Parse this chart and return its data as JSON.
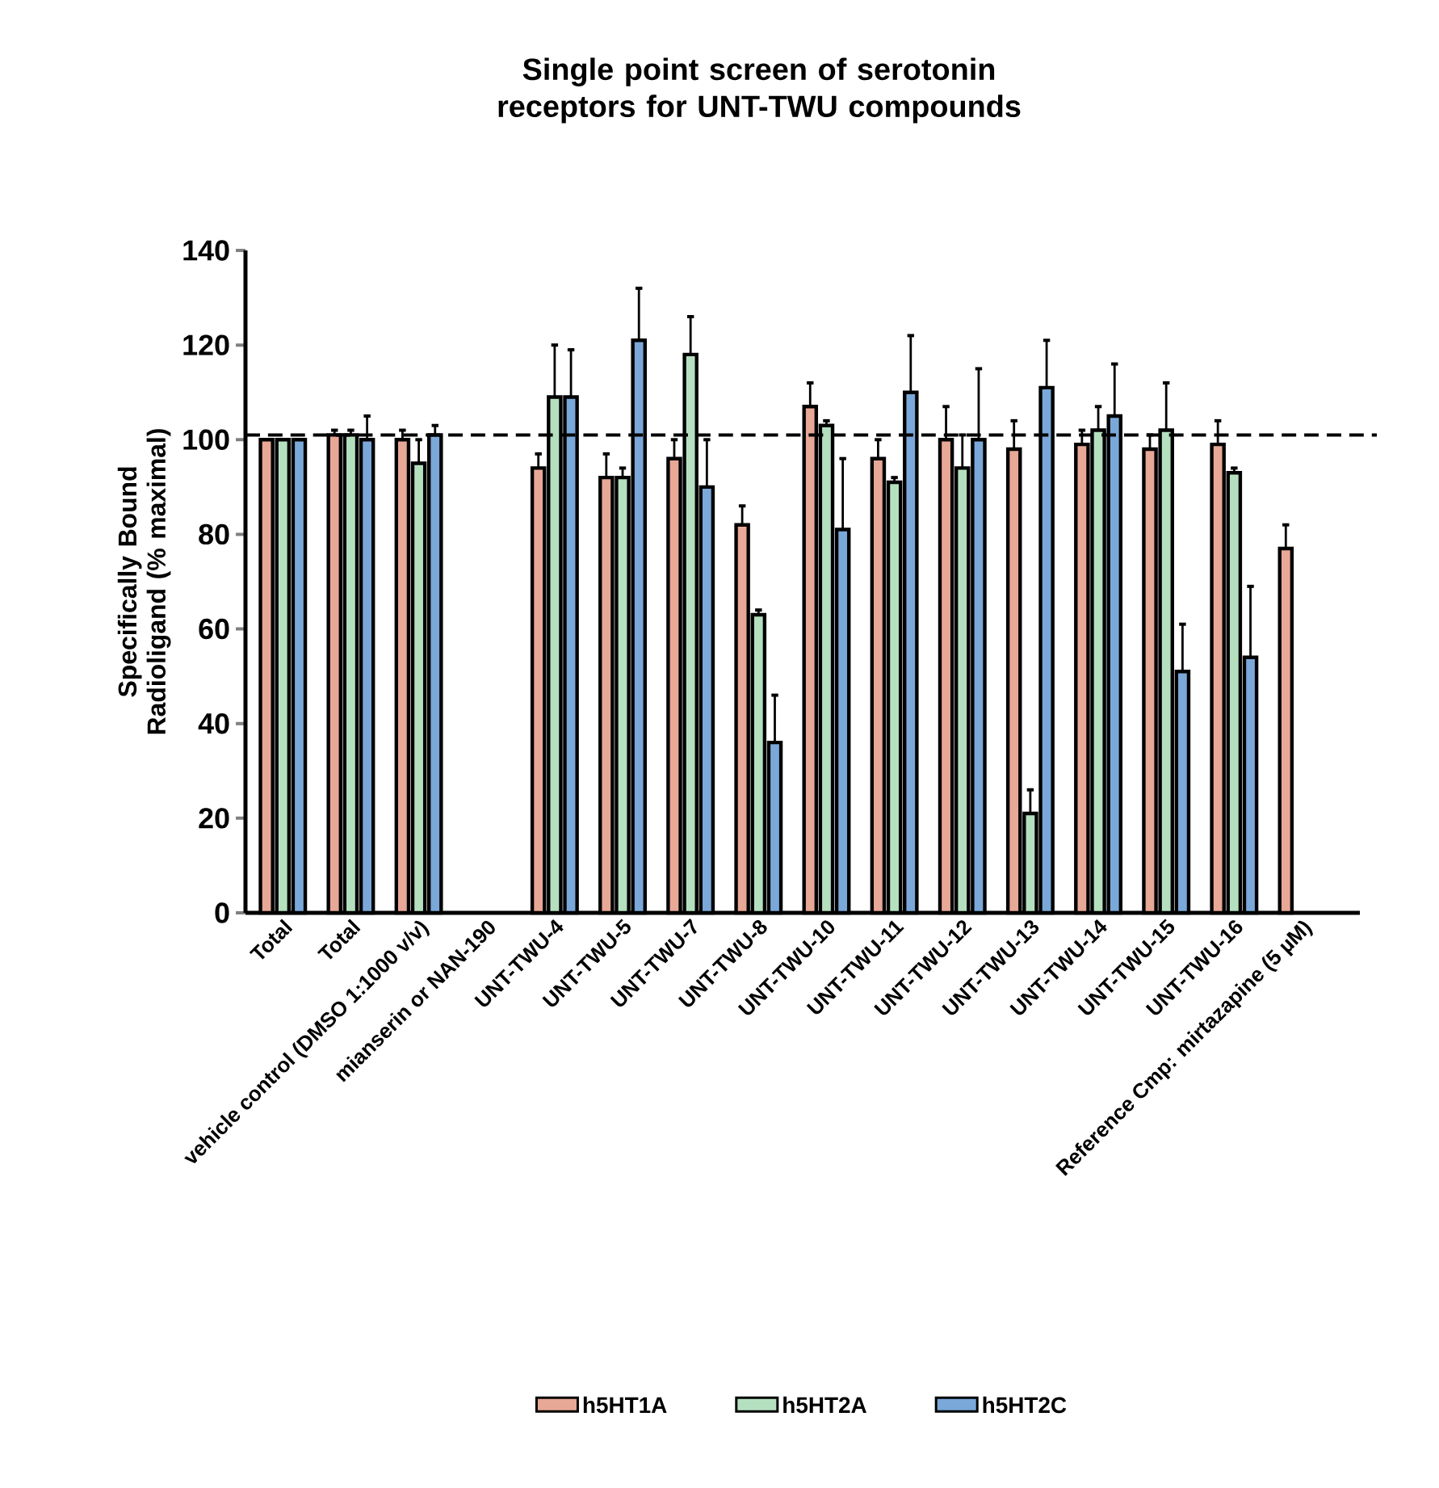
{
  "chart_data": {
    "type": "bar",
    "title": "Single point screen of serotonin receptors for UNT-TWU compounds",
    "ylabel": "Specifically Bound Radioligand (% maximal)",
    "categories": [
      "Total",
      "Total",
      "vehicle control (DMSO 1:1000 v/v)",
      "mianserin or NAN-190",
      "UNT-TWU-4",
      "UNT-TWU-5",
      "UNT-TWU-7",
      "UNT-TWU-8",
      "UNT-TWU-10",
      "UNT-TWU-11",
      "UNT-TWU-12",
      "UNT-TWU-13",
      "UNT-TWU-14",
      "UNT-TWU-15",
      "UNT-TWU-16",
      "Reference Cmp: mirtazapine (5 µM)"
    ],
    "series": [
      {
        "name": "h5HT1A",
        "color": "#e8a896",
        "values": [
          100,
          101,
          100,
          null,
          94,
          92,
          96,
          82,
          107,
          96,
          100,
          98,
          99,
          98,
          99,
          77
        ],
        "errors": [
          null,
          1,
          2,
          null,
          3,
          5,
          4,
          4,
          5,
          4,
          7,
          6,
          3,
          3,
          5,
          5
        ]
      },
      {
        "name": "h5HT2A",
        "color": "#b5e0c0",
        "values": [
          100,
          101,
          95,
          null,
          109,
          92,
          118,
          63,
          103,
          91,
          94,
          21,
          102,
          102,
          93,
          null
        ],
        "errors": [
          null,
          1,
          5,
          null,
          11,
          2,
          8,
          1,
          1,
          1,
          7,
          5,
          5,
          10,
          1,
          null
        ]
      },
      {
        "name": "h5HT2C",
        "color": "#7aa8d8",
        "values": [
          100,
          100,
          101,
          null,
          109,
          121,
          90,
          36,
          81,
          110,
          100,
          111,
          105,
          51,
          54,
          null
        ],
        "errors": [
          null,
          5,
          2,
          null,
          10,
          11,
          10,
          10,
          15,
          12,
          15,
          10,
          11,
          10,
          15,
          null
        ]
      }
    ],
    "ylim": [
      0,
      140
    ],
    "yticks": [
      0,
      20,
      40,
      60,
      80,
      100,
      120,
      140
    ],
    "ref_lines": [
      {
        "axis": "y",
        "value": 101,
        "line_style": "dashed"
      }
    ],
    "legend": "bottom",
    "grid": false
  }
}
